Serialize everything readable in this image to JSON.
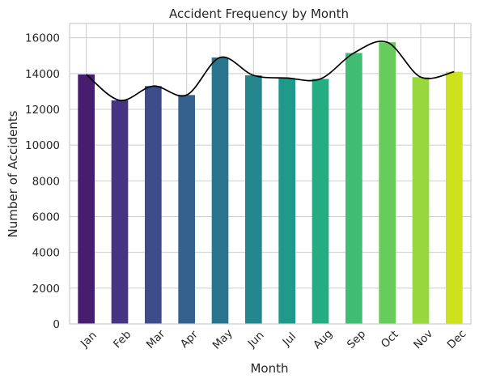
{
  "chart_data": {
    "type": "bar",
    "title": "Accident Frequency by Month",
    "xlabel": "Month",
    "ylabel": "Number of Accidents",
    "categories": [
      "Jan",
      "Feb",
      "Mar",
      "Apr",
      "May",
      "Jun",
      "Jul",
      "Aug",
      "Sep",
      "Oct",
      "Nov",
      "Dec"
    ],
    "values": [
      13950,
      12500,
      13300,
      12800,
      14900,
      13900,
      13750,
      13700,
      15150,
      15750,
      13800,
      14100
    ],
    "ylim": [
      0,
      16800
    ],
    "yticks": [
      0,
      2000,
      4000,
      6000,
      8000,
      10000,
      12000,
      14000,
      16000
    ],
    "grid": true,
    "bar_colors": [
      "#481c6e",
      "#453581",
      "#3d4d8a",
      "#34618d",
      "#2b748e",
      "#24878e",
      "#1f998a",
      "#25ac82",
      "#40bd72",
      "#67cc5c",
      "#98d83e",
      "#cde11d"
    ],
    "trend_line": {
      "type": "smooth",
      "color": "#000000"
    },
    "background": "#ffffff",
    "grid_color": "#cccccc"
  }
}
